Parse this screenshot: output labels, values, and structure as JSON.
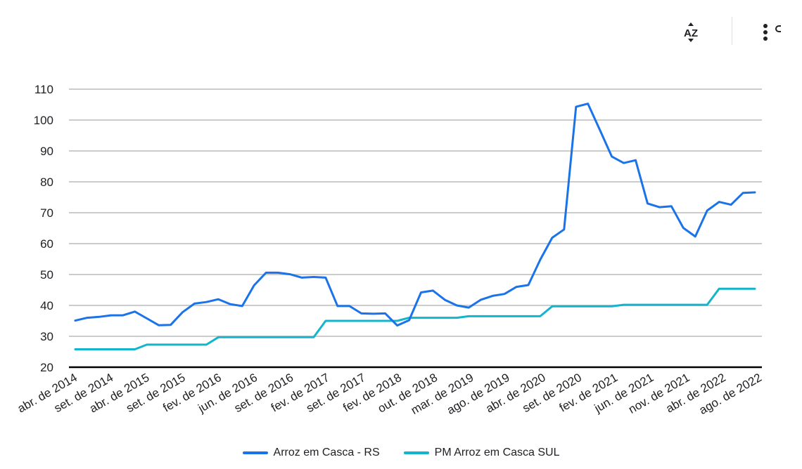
{
  "toolbar": {
    "sort_icon": "sort-az-icon",
    "more_icon": "more-vert-icon"
  },
  "chart_data": {
    "type": "line",
    "title": "",
    "xlabel": "",
    "ylabel": "",
    "ylim": [
      20,
      110
    ],
    "yticks": [
      20,
      30,
      40,
      50,
      60,
      70,
      80,
      90,
      100,
      110
    ],
    "grid": true,
    "legend_position": "bottom",
    "x_tick_labels": [
      "abr. de 2014",
      "set. de 2014",
      "abr. de 2015",
      "set. de 2015",
      "fev. de 2016",
      "jun. de 2016",
      "set. de 2016",
      "fev. de 2017",
      "set. de 2017",
      "fev. de 2018",
      "out. de 2018",
      "mar. de 2019",
      "ago. de 2019",
      "abr. de 2020",
      "set. de 2020",
      "fev. de 2021",
      "jun. de 2021",
      "nov. de 2021",
      "abr. de 2022",
      "ago. de 2022"
    ],
    "series": [
      {
        "name": "Arroz em Casca - RS",
        "color": "#1a73e8",
        "values": [
          35.1,
          36.0,
          36.3,
          36.8,
          36.8,
          38.0,
          35.8,
          33.6,
          33.7,
          37.8,
          40.6,
          41.1,
          42.0,
          40.4,
          39.8,
          46.5,
          50.6,
          50.6,
          50.1,
          49.0,
          49.2,
          49.0,
          39.8,
          39.8,
          37.4,
          37.3,
          37.4,
          33.5,
          35.2,
          44.2,
          44.8,
          41.8,
          40.0,
          39.3,
          41.8,
          43.1,
          43.7,
          46.0,
          46.6,
          54.8,
          61.9,
          64.6,
          104.3,
          105.3,
          96.8,
          88.2,
          86.1,
          87.0,
          73.0,
          71.8,
          72.1,
          65.1,
          62.3,
          70.7,
          73.5,
          72.6,
          76.4,
          76.6
        ]
      },
      {
        "name": "PM Arroz em Casca SUL",
        "color": "#12b5cb",
        "values": [
          25.8,
          25.8,
          25.8,
          25.8,
          25.8,
          25.8,
          27.3,
          27.3,
          27.3,
          27.3,
          27.3,
          27.3,
          29.7,
          29.7,
          29.7,
          29.7,
          29.7,
          29.7,
          29.7,
          29.7,
          29.7,
          35.0,
          35.0,
          35.0,
          35.0,
          35.0,
          35.0,
          35.0,
          36.0,
          36.0,
          36.0,
          36.0,
          36.0,
          36.5,
          36.5,
          36.5,
          36.5,
          36.5,
          36.5,
          36.5,
          39.7,
          39.7,
          39.7,
          39.7,
          39.7,
          39.7,
          40.2,
          40.2,
          40.2,
          40.2,
          40.2,
          40.2,
          40.2,
          40.2,
          45.4,
          45.4,
          45.4,
          45.4
        ]
      }
    ]
  }
}
